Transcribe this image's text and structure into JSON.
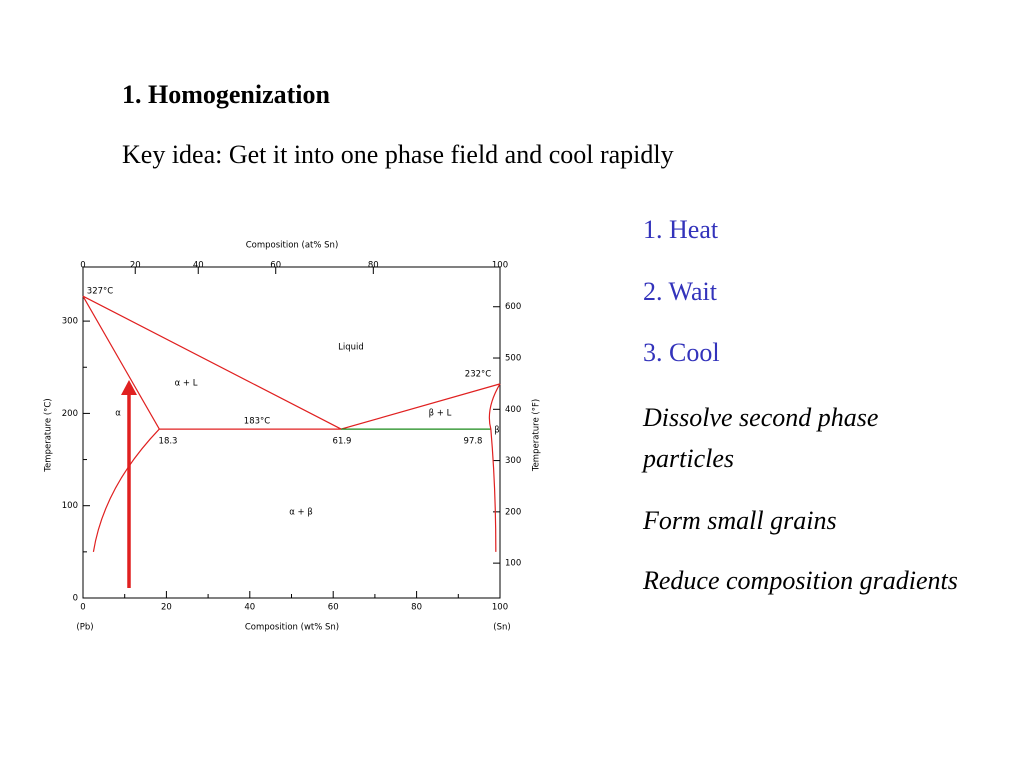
{
  "header": {
    "title": "1. Homogenization",
    "subtitle": "Key idea:  Get it into one phase field and cool rapidly"
  },
  "steps": [
    "1. Heat",
    "2. Wait",
    "3. Cool"
  ],
  "goals": [
    "Dissolve second phase particles",
    "Form small grains",
    "Reduce composition gradients"
  ],
  "diagram": {
    "top_axis_label": "Composition (at% Sn)",
    "top_ticks": [
      0,
      20,
      40,
      60,
      80,
      100
    ],
    "bottom_axis_label": "Composition (wt% Sn)",
    "bottom_ticks": [
      0,
      20,
      40,
      60,
      80,
      100
    ],
    "left_axis_label": "Temperature (°C)",
    "left_ticks": [
      0,
      100,
      200,
      300
    ],
    "right_axis_label": "Temperature (°F)",
    "right_ticks": [
      100,
      200,
      300,
      400,
      500,
      600
    ],
    "end_labels": [
      "(Pb)",
      "(Sn)"
    ],
    "annotations": [
      "327°C",
      "Liquid",
      "232°C",
      "α + L",
      "α",
      "183°C",
      "β + L",
      "β",
      "18.3",
      "61.9",
      "97.8",
      "α + β"
    ]
  }
}
